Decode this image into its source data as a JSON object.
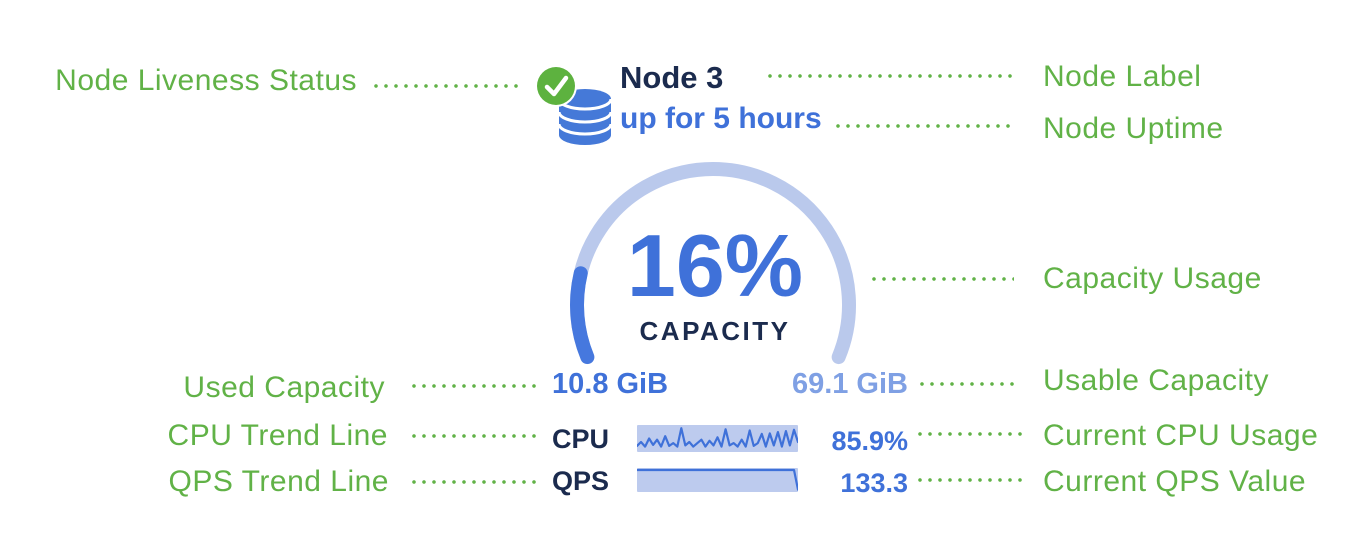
{
  "annotations": {
    "left": [
      {
        "label": "Node Liveness Status"
      },
      {
        "label": "Used Capacity"
      },
      {
        "label": "CPU Trend Line"
      },
      {
        "label": "QPS Trend Line"
      }
    ],
    "right": [
      {
        "label": "Node Label"
      },
      {
        "label": "Node Uptime"
      },
      {
        "label": "Capacity Usage"
      },
      {
        "label": "Usable Capacity"
      },
      {
        "label": "Current CPU Usage"
      },
      {
        "label": "Current QPS Value"
      }
    ]
  },
  "node": {
    "name": "Node 3",
    "uptime": "up for 5 hours",
    "liveness_status": "live",
    "capacity": {
      "percent_label": "16%",
      "percent_value": 16,
      "caption": "CAPACITY",
      "used": "10.8 GiB",
      "usable": "69.1 GiB"
    },
    "cpu": {
      "label": "CPU",
      "value": "85.9%",
      "trend": [
        0.18,
        0.35,
        0.15,
        0.5,
        0.22,
        0.45,
        0.15,
        0.6,
        0.18,
        0.3,
        0.15,
        0.95,
        0.2,
        0.35,
        0.15,
        0.3,
        0.45,
        0.15,
        0.4,
        0.2,
        0.55,
        0.15,
        0.9,
        0.2,
        0.3,
        0.15,
        0.45,
        0.15,
        0.85,
        0.18,
        0.3,
        0.7,
        0.15,
        0.72,
        0.2,
        0.78,
        0.15,
        0.82,
        0.2,
        0.88,
        0.35
      ]
    },
    "qps": {
      "label": "QPS",
      "value": "133.3",
      "trend": [
        1,
        1,
        1,
        1,
        1,
        1,
        1,
        1,
        1,
        1,
        1,
        1,
        1,
        1,
        1,
        1,
        1,
        1,
        1,
        1,
        1,
        1,
        1,
        1,
        1,
        1,
        1,
        1,
        1,
        1,
        1,
        1,
        1,
        1,
        1,
        1,
        1,
        1,
        1,
        1,
        0.02
      ]
    }
  },
  "gauge": {
    "sweep_degrees": 225,
    "start_angle_degrees": 202.5
  },
  "colors": {
    "annotation_green": "#61b247",
    "liveness_green": "#5db23f",
    "primary_blue": "#3f71d9",
    "dark_navy": "#1b2b4e",
    "light_blue": "#7fa0e4",
    "gauge_track": "#bac9ec",
    "gauge_fill": "#4678de",
    "spark_chip": "#bdcbee",
    "database_blue": "#4579d8"
  }
}
